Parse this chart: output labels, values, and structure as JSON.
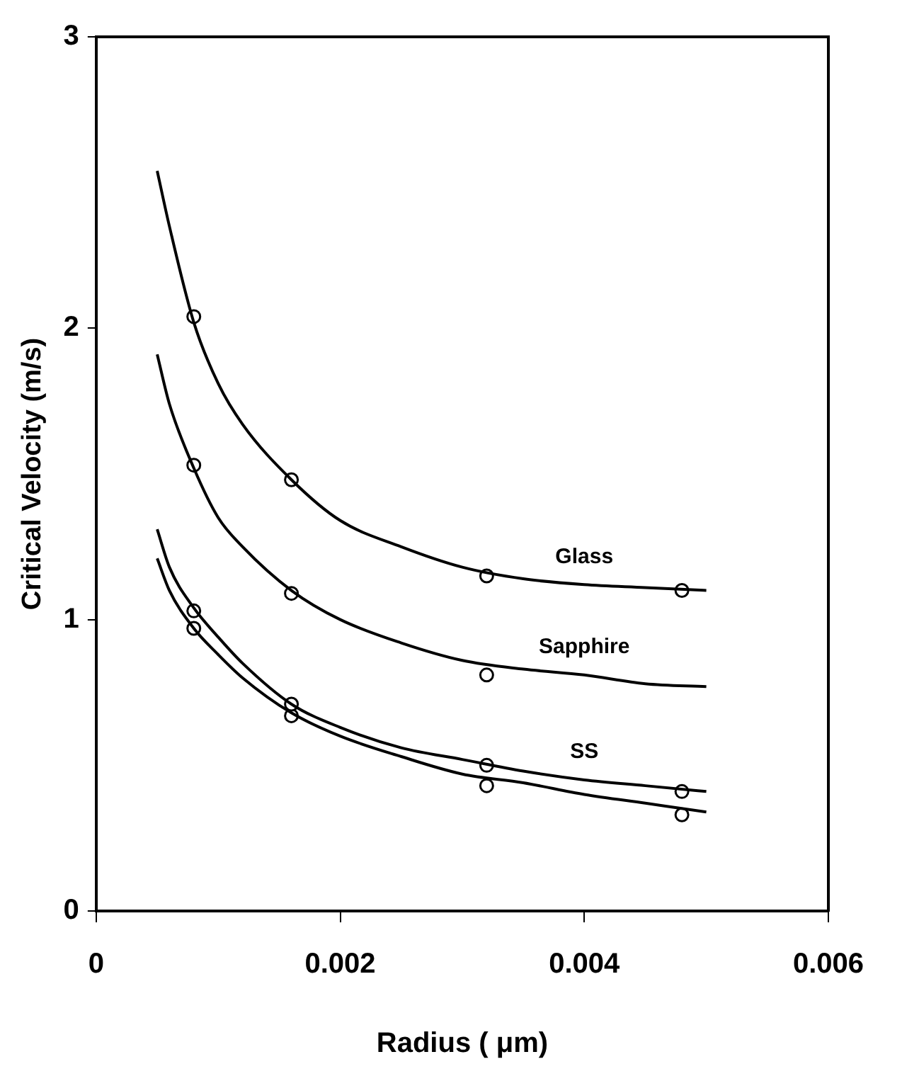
{
  "chart_data": {
    "type": "scatter",
    "xlabel": "Radius ( μm)",
    "ylabel": "Critical Velocity (m/s)",
    "xlim": [
      0,
      0.006
    ],
    "xticks": [
      0,
      0.002,
      0.004,
      0.006
    ],
    "ylim": [
      0,
      3
    ],
    "yticks": [
      0,
      1,
      2,
      3
    ],
    "grid": false,
    "legend": false,
    "marker": "circle",
    "series": [
      {
        "type": "line",
        "name": "Glass",
        "color": "#000000",
        "marker": "none",
        "x": [
          0.0005,
          0.0006,
          0.0008,
          0.001,
          0.0012,
          0.0016,
          0.002,
          0.0025,
          0.003,
          0.0035,
          0.004,
          0.0045,
          0.005
        ],
        "values": [
          2.54,
          2.35,
          2.02,
          1.81,
          1.67,
          1.48,
          1.34,
          1.25,
          1.18,
          1.14,
          1.12,
          1.11,
          1.1
        ]
      },
      {
        "type": "line",
        "name": "Sapphire",
        "color": "#000000",
        "marker": "none",
        "x": [
          0.0005,
          0.0006,
          0.0008,
          0.001,
          0.0012,
          0.0016,
          0.002,
          0.0025,
          0.003,
          0.0035,
          0.004,
          0.0045,
          0.005
        ],
        "values": [
          1.91,
          1.74,
          1.52,
          1.35,
          1.25,
          1.1,
          1.0,
          0.92,
          0.86,
          0.83,
          0.81,
          0.78,
          0.77
        ]
      },
      {
        "type": "line",
        "name": "SS",
        "color": "#000000",
        "marker": "none",
        "x": [
          0.0005,
          0.0006,
          0.0008,
          0.001,
          0.0012,
          0.0016,
          0.002,
          0.0025,
          0.003,
          0.0035,
          0.004,
          0.0045,
          0.005
        ],
        "values": [
          1.31,
          1.18,
          1.04,
          0.94,
          0.85,
          0.71,
          0.63,
          0.56,
          0.52,
          0.48,
          0.45,
          0.43,
          0.41
        ]
      },
      {
        "type": "line",
        "color": "#000000",
        "marker": "none",
        "x": [
          0.0005,
          0.0006,
          0.0008,
          0.001,
          0.0012,
          0.0016,
          0.002,
          0.0025,
          0.003,
          0.0035,
          0.004,
          0.0045,
          0.005
        ],
        "values": [
          1.21,
          1.1,
          0.97,
          0.88,
          0.8,
          0.68,
          0.6,
          0.53,
          0.47,
          0.44,
          0.4,
          0.37,
          0.34
        ]
      },
      {
        "type": "scatter",
        "color": "#000000",
        "x": [
          0.0008,
          0.0016,
          0.0032,
          0.0048
        ],
        "values": [
          2.04,
          1.48,
          1.15,
          1.1
        ]
      },
      {
        "type": "scatter",
        "color": "#000000",
        "x": [
          0.0008,
          0.0016,
          0.0032
        ],
        "values": [
          1.53,
          1.09,
          0.81
        ]
      },
      {
        "type": "scatter",
        "color": "#000000",
        "x": [
          0.0008,
          0.0016,
          0.0032,
          0.0048
        ],
        "values": [
          1.03,
          0.71,
          0.5,
          0.41
        ]
      },
      {
        "type": "scatter",
        "color": "#000000",
        "x": [
          0.0008,
          0.0016,
          0.0032,
          0.0048
        ],
        "values": [
          0.97,
          0.67,
          0.43,
          0.33
        ]
      }
    ]
  }
}
